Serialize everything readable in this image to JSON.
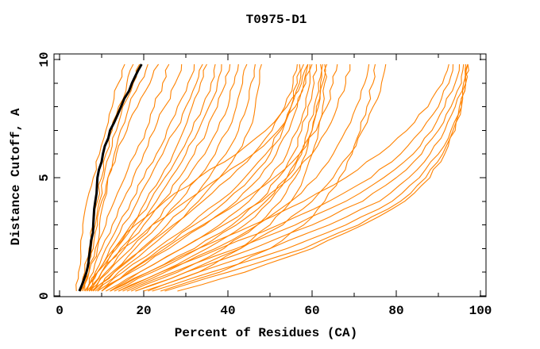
{
  "window": {
    "background": "#ffffff"
  },
  "chart_data": {
    "type": "line",
    "title": "T0975-D1",
    "xlabel": "Percent of Residues (CA)",
    "ylabel": "Distance Cutoff, A",
    "xlim": [
      0,
      100
    ],
    "ylim": [
      0,
      10
    ],
    "x_major_ticks": [
      0,
      20,
      40,
      60,
      80,
      100
    ],
    "x_minor_ticks": [
      10,
      30,
      50,
      70,
      90
    ],
    "y_major_ticks": [
      0,
      5,
      10
    ],
    "y_minor_ticks": [
      1,
      2,
      3,
      4,
      6,
      7,
      8,
      9
    ],
    "grid": false,
    "legend_position": "none",
    "colors": {
      "model_curves": "#ff8200",
      "highlight_curve": "#000000",
      "axis": "#000000",
      "background": "#ffffff"
    },
    "y_levels": [
      0.2,
      1,
      2,
      3,
      4,
      5,
      6,
      7,
      8,
      9,
      9.8
    ],
    "highlight_curve_x": [
      4.7,
      6.4,
      7.3,
      8.0,
      8.5,
      9.0,
      10.3,
      12.0,
      14.6,
      17.2,
      19.5
    ],
    "model_curves": [
      [
        4.0,
        4.5,
        5.0,
        5.5,
        6.5,
        8.0,
        9.5,
        11.0,
        12.5,
        14.0,
        15.5
      ],
      [
        5.0,
        6.0,
        7.0,
        8.0,
        9.0,
        10.0,
        11.0,
        12.5,
        14.0,
        16.0,
        17.5
      ],
      [
        5.5,
        6.5,
        7.5,
        8.5,
        9.5,
        10.5,
        12.0,
        13.5,
        15.0,
        17.5,
        19.0
      ],
      [
        6.0,
        7.0,
        8.5,
        9.5,
        10.5,
        11.5,
        13.0,
        14.5,
        16.5,
        19.0,
        21.0
      ],
      [
        5.0,
        6.5,
        8.0,
        9.0,
        10.0,
        11.5,
        13.5,
        16.0,
        18.5,
        21.5,
        23.5
      ],
      [
        5.5,
        7.0,
        9.0,
        11.0,
        13.0,
        15.5,
        18.0,
        20.5,
        22.5,
        24.5,
        26.0
      ],
      [
        6.0,
        8.0,
        10.0,
        12.5,
        15.0,
        17.5,
        20.0,
        22.5,
        25.0,
        27.5,
        29.0
      ],
      [
        6.5,
        8.5,
        11.0,
        14.0,
        17.0,
        20.0,
        23.0,
        25.5,
        28.0,
        30.5,
        32.0
      ],
      [
        7.0,
        9.0,
        12.0,
        15.0,
        18.5,
        21.5,
        24.5,
        27.5,
        30.0,
        32.5,
        34.0
      ],
      [
        6.0,
        9.0,
        13.0,
        17.0,
        20.5,
        24.0,
        27.0,
        29.5,
        31.5,
        33.5,
        35.0
      ],
      [
        7.5,
        10.0,
        13.5,
        17.5,
        21.5,
        25.0,
        28.5,
        31.5,
        34.0,
        36.0,
        37.0
      ],
      [
        6.5,
        10.0,
        14.5,
        19.0,
        23.0,
        26.5,
        30.0,
        33.0,
        35.5,
        37.5,
        38.5
      ],
      [
        8.0,
        11.0,
        15.5,
        20.0,
        24.5,
        28.5,
        32.0,
        35.0,
        37.5,
        39.5,
        40.5
      ],
      [
        7.0,
        11.5,
        17.0,
        22.0,
        26.5,
        30.5,
        34.5,
        37.5,
        40.0,
        41.5,
        42.5
      ],
      [
        8.5,
        12.5,
        18.0,
        23.5,
        28.5,
        33.0,
        37.0,
        40.0,
        42.0,
        43.5,
        44.5
      ],
      [
        7.5,
        13.0,
        19.5,
        25.5,
        31.0,
        35.5,
        39.5,
        42.5,
        44.5,
        45.5,
        46.5
      ],
      [
        9.0,
        14.0,
        21.0,
        27.5,
        33.0,
        38.0,
        42.0,
        45.0,
        46.5,
        47.5,
        48.0
      ],
      [
        8.0,
        13.0,
        20.0,
        27.0,
        34.0,
        40.5,
        46.0,
        50.5,
        53.5,
        55.5,
        56.5
      ],
      [
        9.0,
        15.0,
        23.0,
        31.0,
        38.0,
        44.0,
        49.0,
        52.5,
        55.0,
        57.0,
        58.0
      ],
      [
        10.0,
        17.0,
        26.0,
        34.5,
        42.0,
        47.5,
        51.5,
        54.5,
        56.5,
        58.0,
        59.0
      ],
      [
        11.0,
        19.0,
        29.0,
        38.0,
        45.0,
        50.0,
        54.0,
        56.5,
        58.5,
        59.5,
        60.0
      ],
      [
        12.0,
        21.0,
        32.0,
        41.0,
        47.5,
        52.0,
        55.5,
        57.5,
        59.0,
        60.5,
        61.0
      ],
      [
        14.0,
        24.0,
        35.0,
        44.0,
        50.0,
        54.0,
        57.0,
        59.0,
        60.5,
        61.5,
        62.0
      ],
      [
        17.0,
        28.0,
        39.0,
        47.0,
        52.5,
        56.0,
        58.5,
        60.0,
        61.0,
        62.0,
        62.5
      ],
      [
        21.0,
        33.0,
        43.0,
        50.0,
        55.0,
        58.0,
        60.0,
        61.5,
        62.5,
        63.0,
        63.5
      ],
      [
        7.0,
        10.0,
        15.0,
        22.0,
        30.0,
        38.0,
        46.0,
        52.0,
        56.0,
        58.5,
        59.5
      ],
      [
        6.5,
        9.0,
        13.0,
        18.0,
        25.0,
        33.0,
        42.0,
        49.0,
        54.0,
        57.5,
        59.0
      ],
      [
        10.0,
        16.0,
        24.0,
        32.0,
        39.5,
        45.5,
        50.0,
        53.0,
        55.0,
        56.5,
        57.0
      ],
      [
        13.0,
        22.0,
        33.0,
        42.0,
        49.0,
        54.0,
        57.5,
        60.0,
        61.5,
        62.5,
        63.0
      ],
      [
        10.0,
        16.5,
        25.0,
        34.0,
        43.0,
        51.0,
        57.0,
        61.0,
        63.5,
        65.0,
        66.0
      ],
      [
        12.0,
        19.0,
        29.0,
        39.0,
        48.0,
        55.0,
        60.0,
        63.5,
        66.0,
        68.0,
        69.0
      ],
      [
        15.0,
        25.0,
        37.0,
        47.0,
        55.0,
        61.0,
        65.0,
        68.0,
        70.5,
        72.5,
        73.5
      ],
      [
        18.0,
        30.0,
        43.0,
        53.0,
        60.0,
        65.0,
        69.0,
        72.0,
        74.5,
        76.5,
        77.5
      ],
      [
        24.0,
        38.0,
        50.0,
        58.0,
        63.0,
        66.5,
        69.5,
        71.5,
        73.0,
        74.5,
        75.0
      ],
      [
        14.0,
        24.0,
        38.0,
        52.0,
        64.0,
        74.0,
        81.0,
        86.0,
        90.0,
        92.5,
        93.5
      ],
      [
        16.0,
        27.0,
        42.0,
        56.0,
        68.0,
        77.0,
        84.0,
        88.5,
        91.5,
        94.0,
        95.0
      ],
      [
        18.0,
        30.0,
        46.0,
        60.0,
        72.0,
        80.0,
        86.0,
        90.0,
        93.0,
        95.5,
        96.0
      ],
      [
        20.0,
        33.0,
        50.0,
        64.0,
        76.0,
        83.0,
        88.0,
        91.5,
        94.0,
        96.0,
        96.5
      ],
      [
        22.0,
        36.0,
        54.0,
        68.0,
        79.0,
        85.5,
        90.0,
        93.0,
        95.0,
        96.5,
        97.0
      ],
      [
        25.0,
        40.0,
        58.0,
        71.0,
        81.0,
        87.0,
        91.0,
        93.5,
        95.5,
        96.5,
        97.0
      ],
      [
        12.0,
        21.0,
        33.0,
        46.0,
        58.0,
        68.0,
        76.0,
        82.5,
        87.5,
        91.0,
        92.5
      ],
      [
        28.0,
        44.0,
        60.0,
        72.0,
        82.0,
        88.0,
        91.5,
        94.0,
        95.5,
        96.5,
        97.0
      ]
    ]
  }
}
